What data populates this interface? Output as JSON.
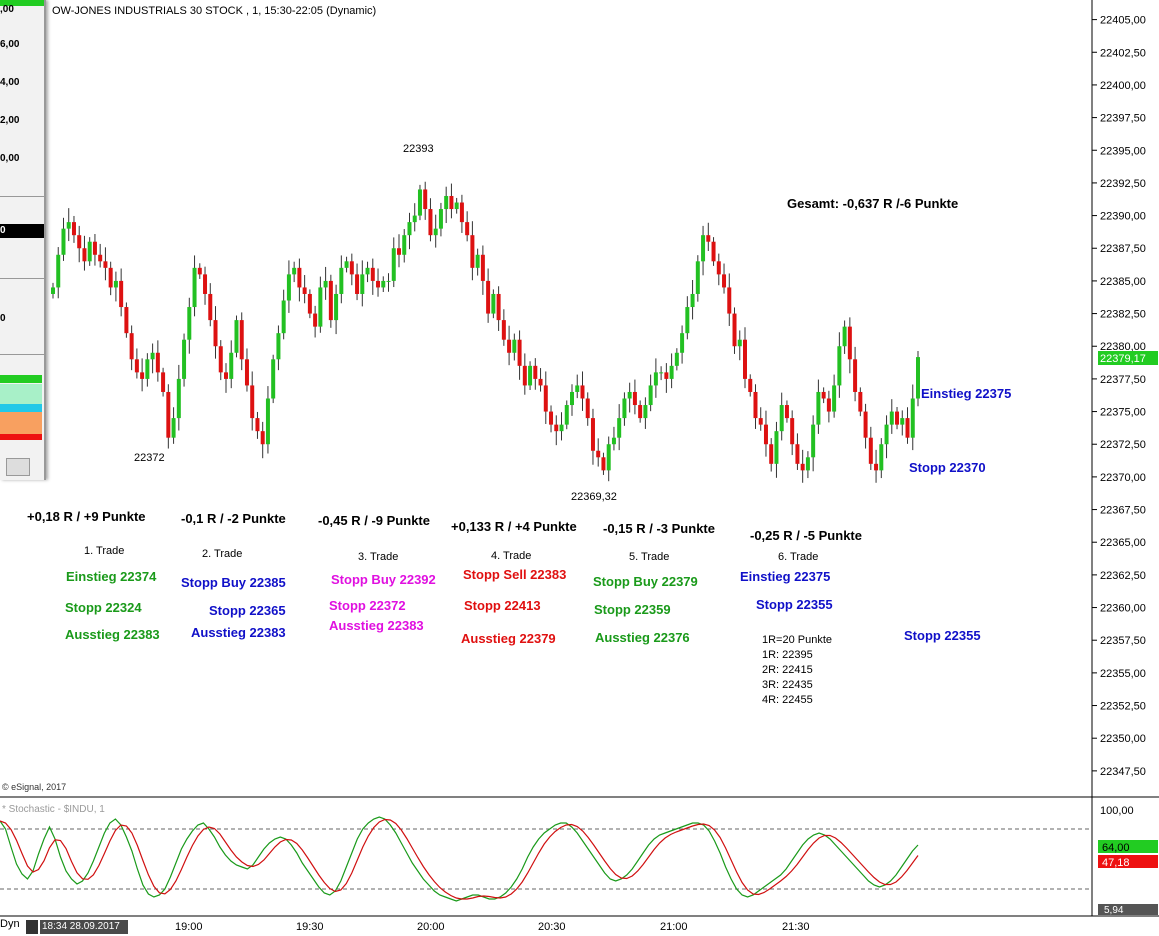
{
  "chart_title": "OW-JONES INDUSTRIALS 30 STOCK , 1, 15:30-22:05 (Dynamic)",
  "copyright": "© eSignal, 2017",
  "stoch_title": "* Stochastic - $INDU, 1",
  "colors": {
    "up_candle": "#22c022",
    "down_candle": "#dd1111",
    "wick": "#333333",
    "stoch_k": "#1a9a1a",
    "stoch_d": "#d01010",
    "price_badge": "#22cc22",
    "stoch_badge_green": "#22cc22",
    "stoch_badge_red": "#ee1111"
  },
  "left_panel": {
    "labels": [
      ",00",
      "6,00",
      "4,00",
      "2,00",
      "0,00",
      "0",
      "0"
    ]
  },
  "chart_data": {
    "type": "candlestick",
    "price_axis": {
      "ylim": [
        22345.5,
        22406.5
      ],
      "ticks": [
        "22405,00",
        "22402,50",
        "22400,00",
        "22397,50",
        "22395,00",
        "22392,50",
        "22390,00",
        "22387,50",
        "22385,00",
        "22382,50",
        "22380,00",
        "22377,50",
        "22375,00",
        "22372,50",
        "22370,00",
        "22367,50",
        "22365,00",
        "22362,50",
        "22360,00",
        "22357,50",
        "22355,00",
        "22352,50",
        "22350,00",
        "22347,50"
      ],
      "last_price": "22379,17"
    },
    "time_axis": {
      "ticks": [
        "19:00",
        "19:30",
        "20:00",
        "20:30",
        "21:00",
        "21:30"
      ]
    },
    "date_label": "18:34 28.09.2017",
    "dyn_label": "Dyn",
    "closes": [
      22384.5,
      22387.0,
      22389.0,
      22389.5,
      22388.5,
      22387.5,
      22386.5,
      22388.0,
      22387.0,
      22386.5,
      22386.0,
      22384.5,
      22385.0,
      22383.0,
      22381.0,
      22379.0,
      22378.0,
      22377.5,
      22379.0,
      22379.5,
      22378.0,
      22376.5,
      22373.0,
      22374.5,
      22377.5,
      22380.5,
      22383.0,
      22386.0,
      22385.5,
      22384.0,
      22382.0,
      22380.0,
      22378.0,
      22377.5,
      22379.5,
      22382.0,
      22379.0,
      22377.0,
      22374.5,
      22373.5,
      22372.5,
      22376.0,
      22379.0,
      22381.0,
      22383.5,
      22385.5,
      22386.0,
      22384.5,
      22384.0,
      22382.5,
      22381.5,
      22384.5,
      22385.0,
      22382.0,
      22384.0,
      22386.0,
      22386.5,
      22385.5,
      22384.0,
      22385.5,
      22386.0,
      22385.0,
      22384.5,
      22385.0,
      22385.0,
      22387.5,
      22387.0,
      22388.5,
      22389.5,
      22390.0,
      22392.0,
      22390.5,
      22388.5,
      22389.0,
      22390.5,
      22391.5,
      22390.5,
      22391.0,
      22389.5,
      22388.5,
      22386.0,
      22387.0,
      22385.0,
      22382.5,
      22384.0,
      22382.0,
      22380.5,
      22379.5,
      22380.5,
      22378.5,
      22377.0,
      22378.5,
      22377.5,
      22377.0,
      22375.0,
      22374.0,
      22373.5,
      22374.0,
      22375.5,
      22376.5,
      22377.0,
      22376.0,
      22374.5,
      22372.0,
      22371.5,
      22370.5,
      22372.5,
      22373.0,
      22374.5,
      22376.0,
      22376.5,
      22375.5,
      22374.5,
      22375.5,
      22377.0,
      22378.0,
      22378.0,
      22377.5,
      22378.5,
      22379.5,
      22381.0,
      22383.0,
      22384.0,
      22386.5,
      22388.5,
      22388.0,
      22386.5,
      22385.5,
      22384.5,
      22382.5,
      22380.0,
      22380.5,
      22377.5,
      22376.5,
      22374.5,
      22374.0,
      22372.5,
      22371.0,
      22373.5,
      22375.5,
      22374.5,
      22372.5,
      22371.0,
      22370.5,
      22371.5,
      22374.0,
      22376.5,
      22376.0,
      22375.0,
      22377.0,
      22380.0,
      22381.5,
      22379.0,
      22376.5,
      22375.0,
      22373.0,
      22371.0,
      22370.5,
      22372.5,
      22374.0,
      22375.0,
      22374.0,
      22374.5,
      22373.0,
      22376.0,
      22379.17
    ]
  },
  "stoch": {
    "axis_ticks": [
      "100,00",
      "5,94"
    ],
    "k_badge": "64,00",
    "d_badge": "47,18",
    "k": [
      88,
      80,
      62,
      45,
      35,
      30,
      38,
      55,
      70,
      82,
      70,
      52,
      38,
      30,
      25,
      28,
      36,
      48,
      62,
      76,
      86,
      90,
      84,
      72,
      58,
      40,
      24,
      15,
      12,
      14,
      20,
      32,
      46,
      60,
      70,
      78,
      84,
      86,
      80,
      72,
      62,
      54,
      48,
      44,
      42,
      40,
      44,
      52,
      60,
      66,
      70,
      72,
      70,
      64,
      56,
      46,
      38,
      30,
      22,
      16,
      14,
      18,
      28,
      42,
      56,
      70,
      80,
      86,
      90,
      92,
      90,
      84,
      76,
      66,
      56,
      46,
      38,
      30,
      24,
      18,
      14,
      12,
      10,
      8,
      10,
      12,
      14,
      14,
      12,
      10,
      10,
      12,
      16,
      22,
      30,
      40,
      52,
      62,
      70,
      76,
      80,
      84,
      86,
      86,
      82,
      76,
      68,
      60,
      52,
      44,
      36,
      30,
      28,
      30,
      34,
      40,
      48,
      56,
      64,
      70,
      74,
      76,
      78,
      80,
      82,
      84,
      86,
      86,
      84,
      78,
      68,
      56,
      42,
      30,
      20,
      14,
      12,
      14,
      18,
      22,
      26,
      30,
      34,
      40,
      48,
      56,
      64,
      70,
      74,
      76,
      74,
      70,
      64,
      58,
      52,
      46,
      40,
      34,
      28,
      24,
      22,
      24,
      28,
      34,
      42,
      50,
      58,
      64
    ]
  },
  "annotations": {
    "price_labels": [
      "22393",
      "22372",
      "22369,32"
    ],
    "gesamt": "Gesamt: -0,637 R /-6 Punkte",
    "right_einstieg": "Einstieg 22375",
    "right_stopp1": "Stopp 22370",
    "right_stopp2": "Stopp 22355",
    "trades": [
      {
        "result": "+0,18 R / +9 Punkte",
        "name": "1. Trade",
        "l1": "Einstieg 22374",
        "l2": "Stopp 22324",
        "l3": "Ausstieg 22383"
      },
      {
        "result": "-0,1 R / -2 Punkte",
        "name": "2. Trade",
        "l1": "Stopp Buy 22385",
        "l2": "Stopp 22365",
        "l3": "Ausstieg 22383"
      },
      {
        "result": "-0,45 R / -9 Punkte",
        "name": "3. Trade",
        "l1": "Stopp Buy 22392",
        "l2": "Stopp 22372",
        "l3": "Ausstieg 22383"
      },
      {
        "result": "+0,133 R / +4 Punkte",
        "name": "4. Trade",
        "l1": "Stopp Sell 22383",
        "l2": "Stopp 22413",
        "l3": "Ausstieg 22379"
      },
      {
        "result": "-0,15 R / -3 Punkte",
        "name": "5. Trade",
        "l1": "Stopp Buy 22379",
        "l2": "Stopp 22359",
        "l3": "Ausstieg 22376"
      },
      {
        "result": "-0,25 R / -5 Punkte",
        "name": "6. Trade",
        "l1": "Einstieg 22375",
        "l2": "Stopp 22355"
      }
    ],
    "r_list": [
      "1R=20 Punkte",
      "1R: 22395",
      "2R: 22415",
      "3R: 22435",
      "4R: 22455"
    ]
  }
}
